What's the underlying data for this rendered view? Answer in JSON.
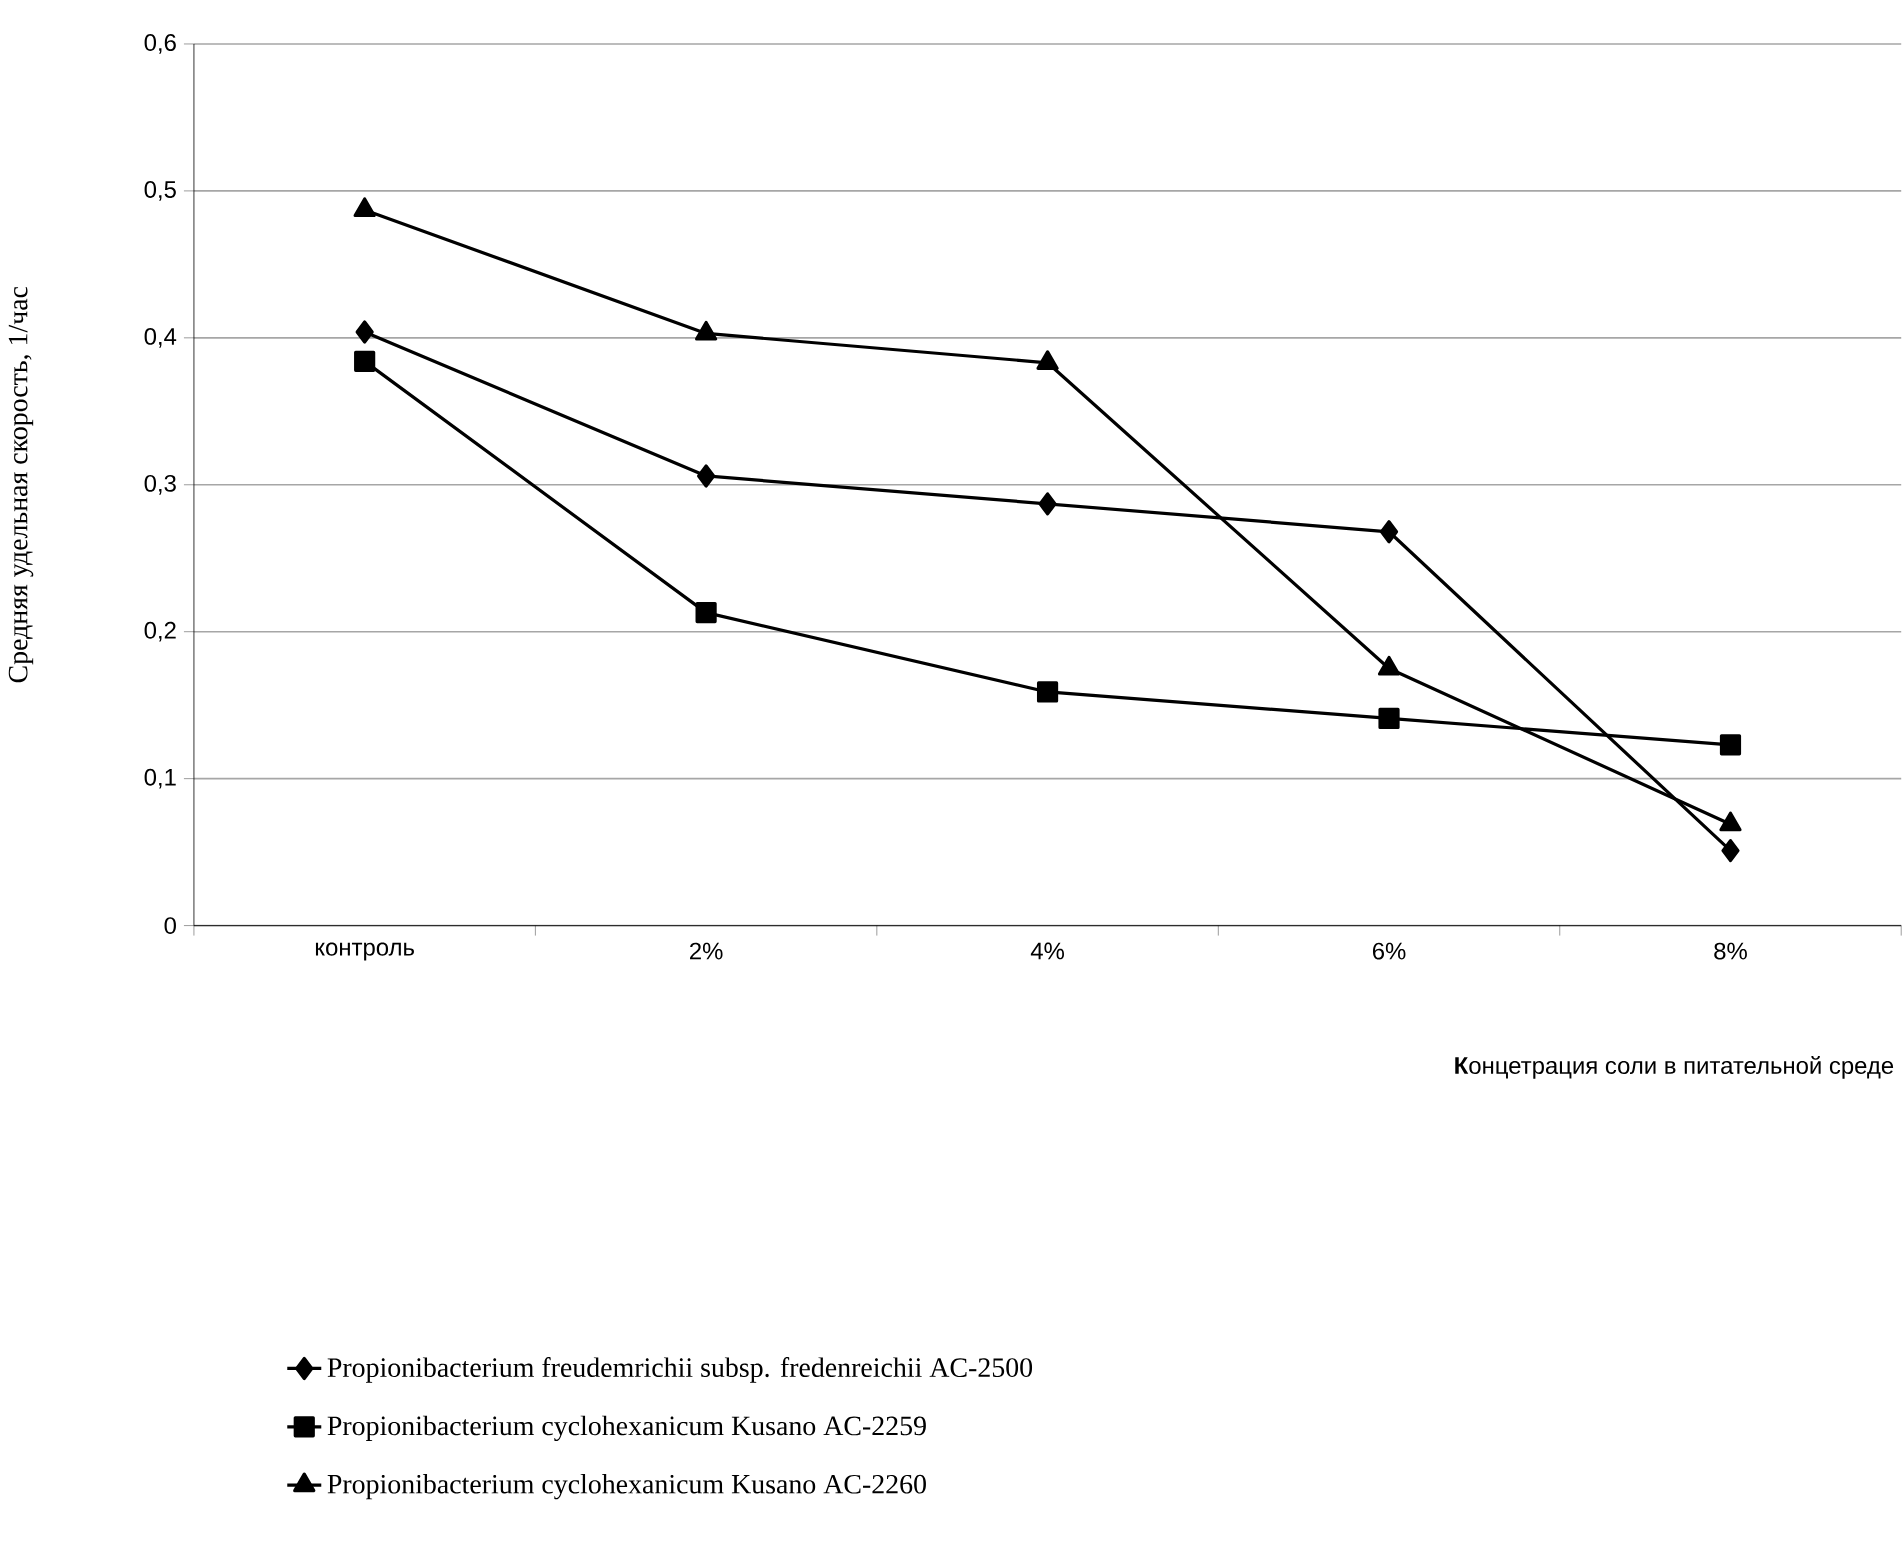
{
  "chart_data": {
    "type": "line",
    "xlabel": "**К**онцетрация соли в питательной среде",
    "ylabel": "Средняя удельная скорость,  1/час",
    "categories": [
      "контроль",
      "2%",
      "4%",
      "6%",
      "8%"
    ],
    "series": [
      {
        "name": "Propionibacterium freudemrichii subsp. fredenreichii AC-2500",
        "color": "#000000",
        "marker": "diamond",
        "values": [
          0.404,
          0.306,
          0.287,
          0.268,
          0.051
        ]
      },
      {
        "name": "Propionibacterium cyclohexanicum Kusano AC-2259",
        "color": "#000000",
        "marker": "square",
        "values": [
          0.384,
          0.213,
          0.159,
          0.141,
          0.123
        ]
      },
      {
        "name": "Propionibacterium cyclohexanicum Kusano AC-2260",
        "color": "#000000",
        "marker": "triangle",
        "values": [
          0.487,
          0.403,
          0.383,
          0.175,
          0.069
        ]
      }
    ],
    "ylim": [
      0,
      0.6
    ],
    "yticks": [
      0,
      {
        "value": 0.1,
        "label": "0,1"
      },
      {
        "value": 0.2,
        "label": "0,2"
      },
      {
        "value": 0.3,
        "label": "0,3"
      },
      {
        "value": 0.4,
        "label": "0,4"
      },
      {
        "value": 0.5,
        "label": "0,5"
      },
      {
        "value": 0.6,
        "label": "0,6"
      }
    ],
    "grid": "y",
    "legend": "bottom",
    "line_style": "solid"
  }
}
